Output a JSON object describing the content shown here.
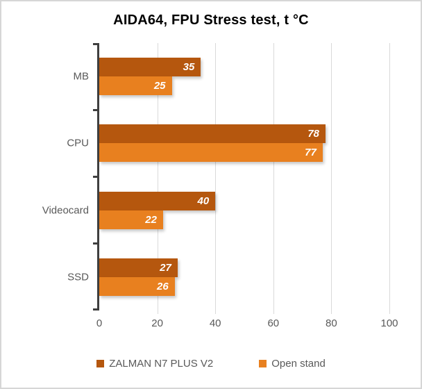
{
  "chart_data": {
    "type": "bar",
    "orientation": "horizontal",
    "title": "AIDA64, FPU Stress test, t °C",
    "categories": [
      "MB",
      "CPU",
      "Videocard",
      "SSD"
    ],
    "series": [
      {
        "name": "ZALMAN N7 PLUS V2",
        "color": "#B5570E",
        "values": [
          35,
          78,
          40,
          27
        ]
      },
      {
        "name": "Open stand",
        "color": "#E8801F",
        "values": [
          25,
          77,
          22,
          26
        ]
      }
    ],
    "xlim": [
      0,
      100
    ],
    "x_ticks": [
      0,
      20,
      40,
      60,
      80,
      100
    ],
    "grid": true,
    "gridlines": "vertical",
    "legend_position": "bottom",
    "value_labels": "inside-end"
  },
  "style": {
    "series1_color": "#B5570E",
    "series2_color": "#E8801F",
    "grid_color": "#D9D9D9",
    "axis_color": "#3F3F3F",
    "label_color": "#595959",
    "title_color": "#000000",
    "value_label_color": "#FFFFFF",
    "frame_border_color": "#D6D6D6",
    "background_color": "#FFFFFF"
  }
}
